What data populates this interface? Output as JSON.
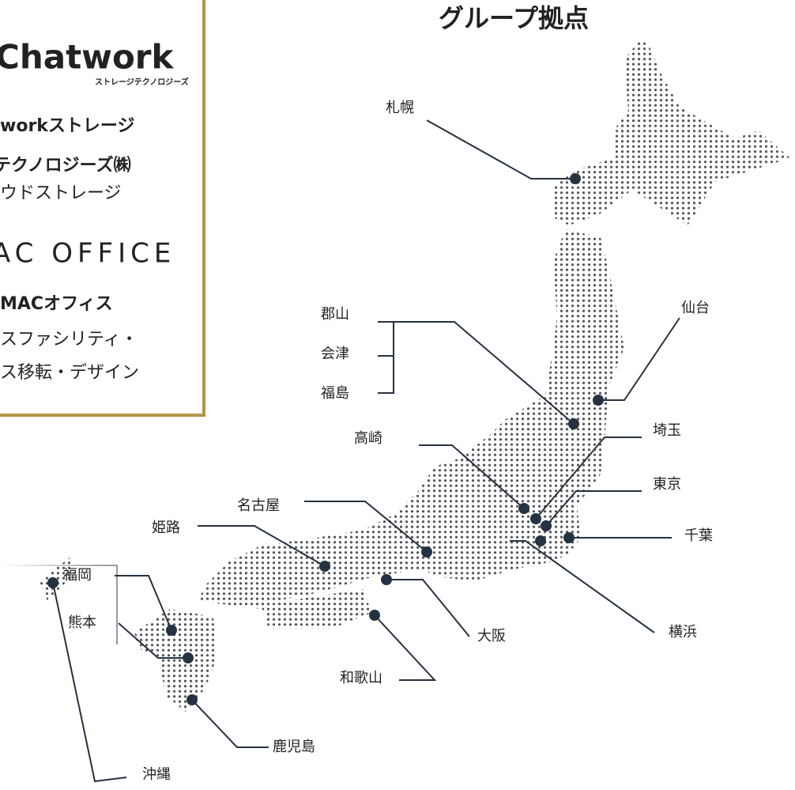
{
  "title": "グループ拠点",
  "panel": {
    "logo": "Chatwork",
    "logo_sub": "ストレージテクノロジーズ",
    "lines": [
      "workストレージ",
      "テクノロジーズ㈱",
      "ウドストレージ",
      "AC OFFICE",
      "MACオフィス",
      "スファシリティ・",
      "ス移転・デザイン"
    ]
  },
  "locations": [
    "札幌",
    "仙台",
    "郡山",
    "会津",
    "福島",
    "高崎",
    "埼玉",
    "東京",
    "千葉",
    "横浜",
    "名古屋",
    "姫路",
    "大阪",
    "和歌山",
    "福岡",
    "熊本",
    "鹿児島",
    "沖縄"
  ]
}
